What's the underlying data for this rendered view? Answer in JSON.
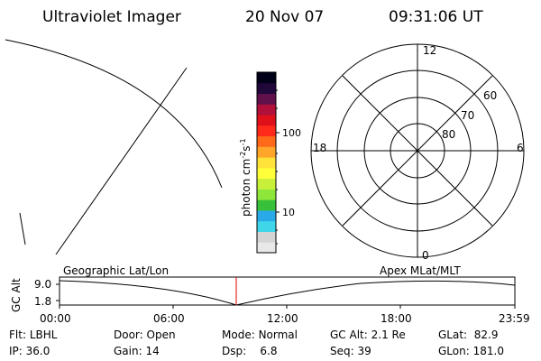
{
  "header": {
    "title": "Ultraviolet Imager",
    "date": "20 Nov 07",
    "time": "09:31:06 UT"
  },
  "colorbar": {
    "unit_main": "photon cm",
    "unit_exp1": "-2",
    "unit_s": "s",
    "unit_exp2": "-1",
    "ticks": [
      "100",
      "10"
    ],
    "colors": [
      "#e8e8e8",
      "#d4d4d4",
      "#3fd6ea",
      "#2aa9e8",
      "#38c03a",
      "#8ee63a",
      "#c8f03a",
      "#ffff3a",
      "#ffe23a",
      "#ffa52a",
      "#ff6a1a",
      "#ff2a1a",
      "#e0101a",
      "#b0103a",
      "#60104a",
      "#20083a",
      "#000018"
    ]
  },
  "polar": {
    "mlt_labels": {
      "top": "12",
      "left": "18",
      "right": "6",
      "bottom": "0"
    },
    "lat_labels": [
      "60",
      "70",
      "80"
    ]
  },
  "timeline": {
    "axis_title": "GC Alt",
    "y_ticks": [
      "9.0",
      "1.8"
    ],
    "left_label": "Geographic Lat/Lon",
    "right_label": "Apex  MLat/MLT",
    "x_ticks": [
      "00:00",
      "06:00",
      "12:00",
      "18:00",
      "23:59"
    ]
  },
  "info": {
    "row1": [
      {
        "label": "Flt:",
        "value": "LBHL"
      },
      {
        "label": "Door:",
        "value": "Open"
      },
      {
        "label": "Mode:",
        "value": "Normal"
      },
      {
        "label": "GC Alt:",
        "value": "2.1 Re"
      },
      {
        "label": "GLat:",
        "value": "82.9"
      }
    ],
    "row2": [
      {
        "label": "IP:",
        "value": "36.0"
      },
      {
        "label": "Gain:",
        "value": "14"
      },
      {
        "label": "Dsp:",
        "value": "6.8"
      },
      {
        "label": "Seq:",
        "value": "39"
      },
      {
        "label": "GLon:",
        "value": "181.0"
      }
    ]
  }
}
